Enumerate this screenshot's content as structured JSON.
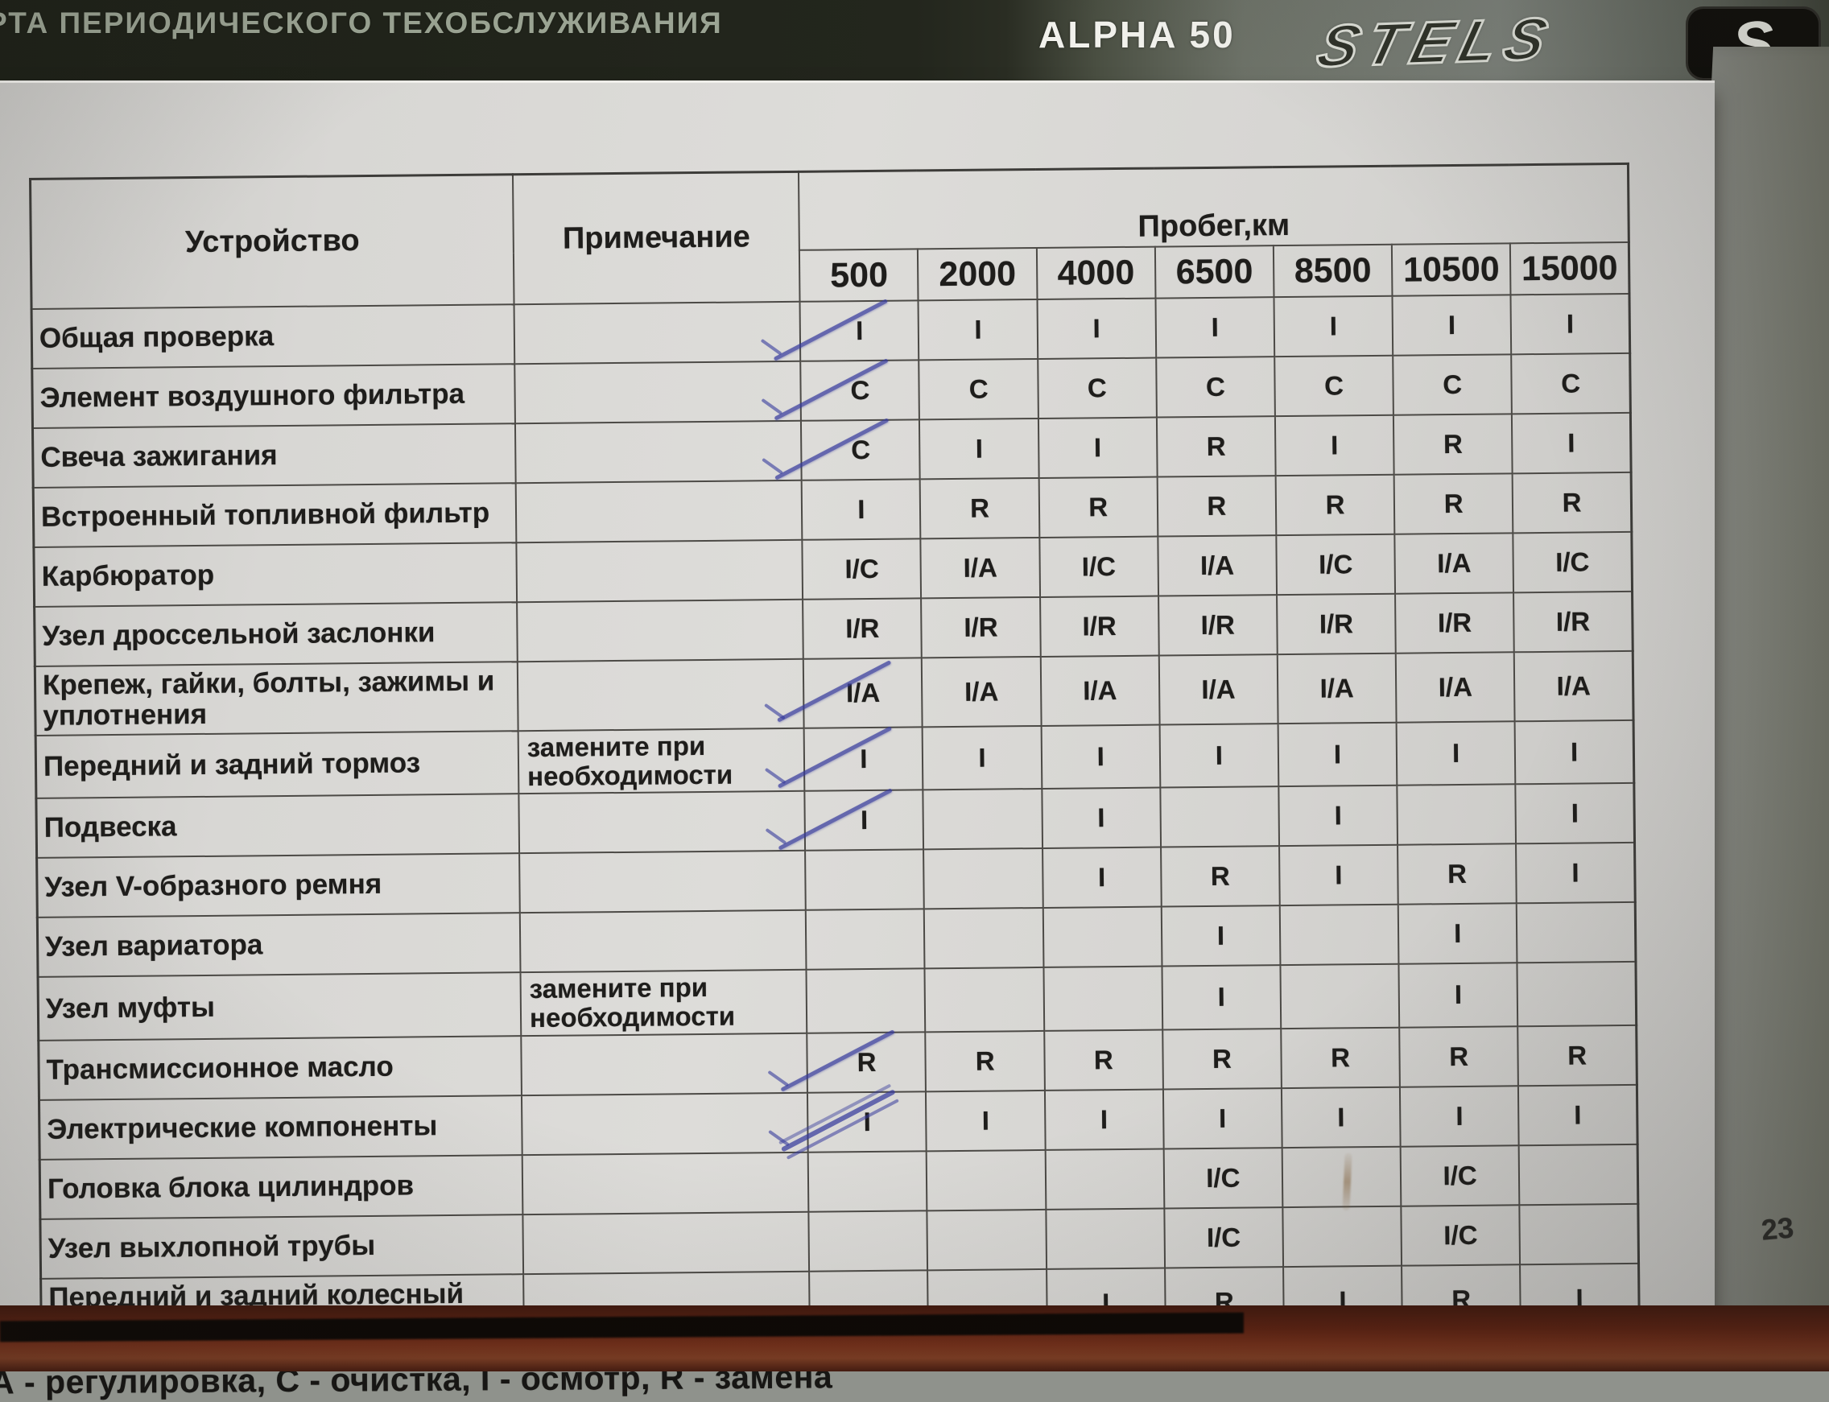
{
  "banner": {
    "title_partial": "РТА ПЕРИОДИЧЕСКОГО ТЕХОБСЛУЖИВАНИЯ",
    "model": "ALPHA 50",
    "brand": "STELS",
    "badge_letter": "S"
  },
  "table": {
    "col_device": "Устройство",
    "col_note": "Примечание",
    "col_mileage": "Пробег,км",
    "mileage_values": [
      "500",
      "2000",
      "4000",
      "6500",
      "8500",
      "10500",
      "15000"
    ],
    "rows": [
      {
        "device": "Общая проверка",
        "note": "",
        "cells": [
          "I",
          "I",
          "I",
          "I",
          "I",
          "I",
          "I"
        ],
        "pen_cols": [
          0
        ]
      },
      {
        "device": "Элемент воздушного фильтра",
        "note": "",
        "cells": [
          "C",
          "C",
          "C",
          "C",
          "C",
          "C",
          "C"
        ],
        "pen_cols": [
          0
        ]
      },
      {
        "device": "Свеча зажигания",
        "note": "",
        "cells": [
          "C",
          "I",
          "I",
          "R",
          "I",
          "R",
          "I"
        ],
        "pen_cols": [
          0
        ]
      },
      {
        "device": "Встроенный топливной фильтр",
        "note": "",
        "cells": [
          "I",
          "R",
          "R",
          "R",
          "R",
          "R",
          "R"
        ],
        "pen_cols": []
      },
      {
        "device": "Карбюратор",
        "note": "",
        "cells": [
          "I/C",
          "I/A",
          "I/C",
          "I/A",
          "I/C",
          "I/A",
          "I/C"
        ],
        "pen_cols": []
      },
      {
        "device": "Узел дроссельной заслонки",
        "note": "",
        "cells": [
          "I/R",
          "I/R",
          "I/R",
          "I/R",
          "I/R",
          "I/R",
          "I/R"
        ],
        "pen_cols": []
      },
      {
        "device": "Крепеж, гайки, болты, зажимы и уплотнения",
        "note": "",
        "cells": [
          "I/A",
          "I/A",
          "I/A",
          "I/A",
          "I/A",
          "I/A",
          "I/A"
        ],
        "pen_cols": [
          0
        ]
      },
      {
        "device": "Передний и задний тормоз",
        "note": "замените при необходимости",
        "cells": [
          "I",
          "I",
          "I",
          "I",
          "I",
          "I",
          "I"
        ],
        "pen_cols": [
          0
        ]
      },
      {
        "device": "Подвеска",
        "note": "",
        "cells": [
          "I",
          "",
          "I",
          "",
          "I",
          "",
          "I"
        ],
        "pen_cols": [
          0
        ]
      },
      {
        "device": "Узел V-образного ремня",
        "note": "",
        "cells": [
          "",
          "",
          "I",
          "R",
          "I",
          "R",
          "I"
        ],
        "pen_cols": []
      },
      {
        "device": "Узел вариатора",
        "note": "",
        "cells": [
          "",
          "",
          "",
          "I",
          "",
          "I",
          ""
        ],
        "pen_cols": []
      },
      {
        "device": "Узел муфты",
        "note": "замените при необходимости",
        "cells": [
          "",
          "",
          "",
          "I",
          "",
          "I",
          ""
        ],
        "pen_cols": []
      },
      {
        "device": "Трансмиссионное масло",
        "note": "",
        "cells": [
          "R",
          "R",
          "R",
          "R",
          "R",
          "R",
          "R"
        ],
        "pen_cols": [
          0
        ]
      },
      {
        "device": "Электрические компоненты",
        "note": "",
        "cells": [
          "I",
          "I",
          "I",
          "I",
          "I",
          "I",
          "I"
        ],
        "pen_cols": [
          0
        ],
        "pen_style": "scribble"
      },
      {
        "device": "Головка блока цилиндров",
        "note": "",
        "cells": [
          "",
          "",
          "",
          "I/C",
          "",
          "I/C",
          ""
        ],
        "pen_cols": [],
        "stain_col": 4
      },
      {
        "device": "Узел выхлопной трубы",
        "note": "",
        "cells": [
          "",
          "",
          "",
          "I/C",
          "",
          "I/C",
          ""
        ],
        "pen_cols": []
      },
      {
        "device": "Передний и задний колесный подшипник",
        "note": "",
        "cells": [
          "",
          "",
          "I",
          "R",
          "I",
          "R",
          "I"
        ],
        "pen_cols": []
      }
    ]
  },
  "footer": {
    "legend": "А - регулировка, С - очистка, I - осмотр, R - замена",
    "page_number": "23"
  }
}
